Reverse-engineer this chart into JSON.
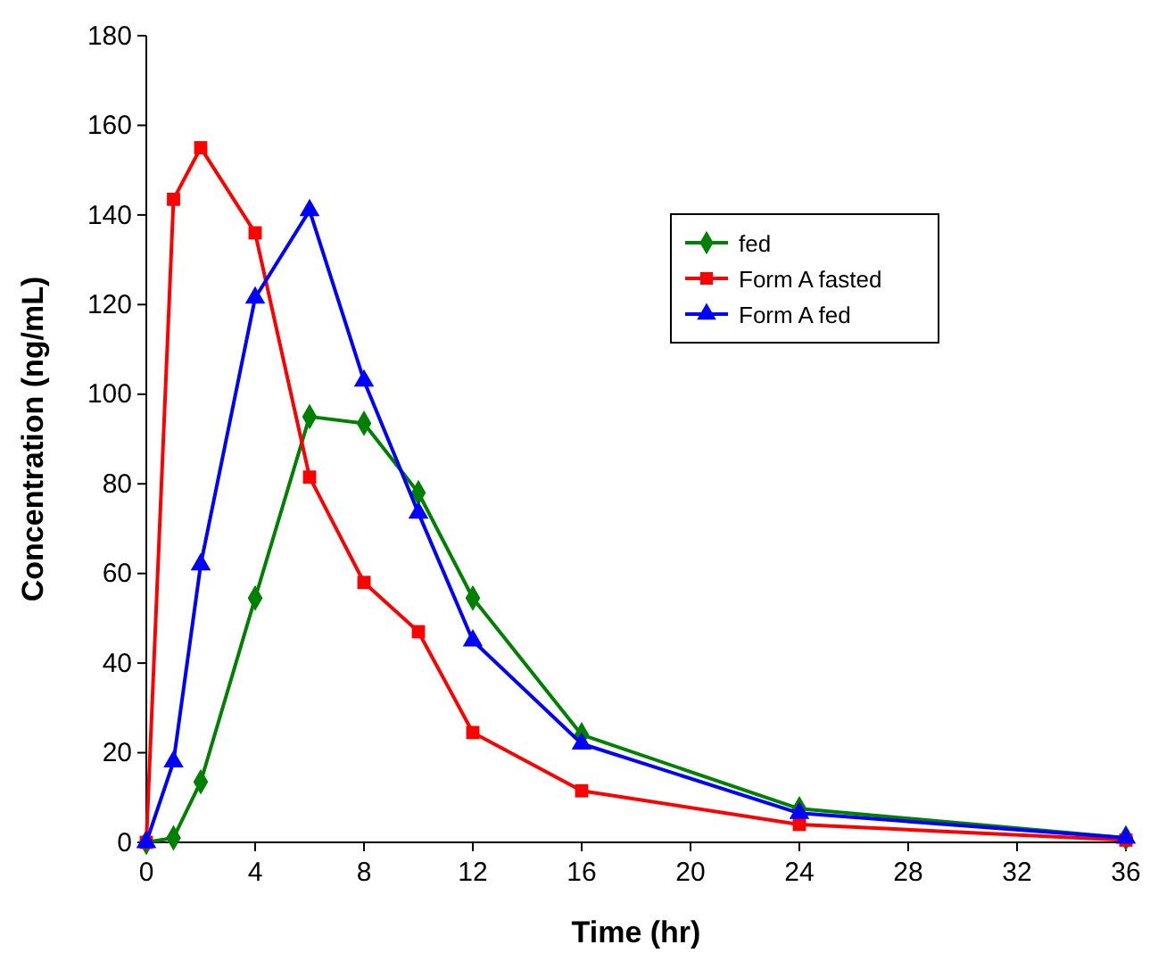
{
  "chart_data": {
    "type": "line",
    "xlabel": "Time (hr)",
    "ylabel": "Concentration (ng/mL)",
    "xlim": [
      0,
      36
    ],
    "xticks": [
      0,
      4,
      8,
      12,
      16,
      20,
      24,
      28,
      32,
      36
    ],
    "ylim": [
      0,
      180
    ],
    "yticks": [
      0,
      20,
      40,
      60,
      80,
      100,
      120,
      140,
      160,
      180
    ],
    "grid": false,
    "legend": "top right",
    "series": [
      {
        "name": "fed",
        "color": "#008000",
        "marker": "diamond",
        "x": [
          0,
          1,
          2,
          4,
          6,
          8,
          10,
          12,
          16,
          24,
          36
        ],
        "values": [
          0,
          1,
          13.5,
          54.5,
          95,
          93.5,
          78,
          54.5,
          24,
          7.5,
          1
        ]
      },
      {
        "name": "Form A fasted",
        "color": "#ff0000",
        "marker": "square",
        "x": [
          0,
          1,
          2,
          4,
          6,
          8,
          10,
          12,
          16,
          24,
          36
        ],
        "values": [
          0,
          143.5,
          155,
          136,
          81.5,
          58,
          47,
          24.5,
          11.5,
          4,
          0.5
        ]
      },
      {
        "name": "Form A fed",
        "color": "#0000ff",
        "marker": "triangle",
        "x": [
          0,
          1,
          2,
          4,
          6,
          8,
          10,
          12,
          16,
          24,
          36
        ],
        "values": [
          0,
          18,
          62,
          121.5,
          141,
          103,
          73.5,
          45,
          22,
          6.5,
          1
        ]
      }
    ]
  }
}
